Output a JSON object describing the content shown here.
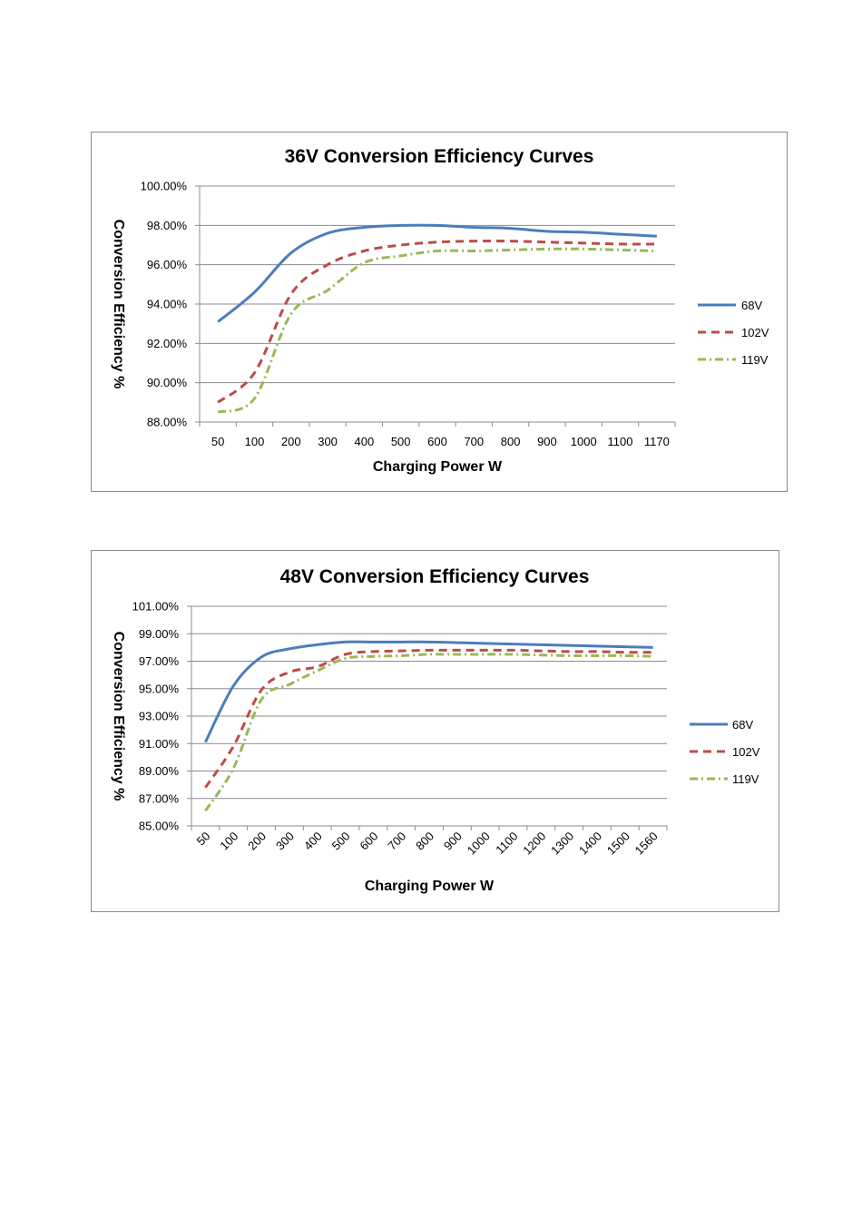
{
  "chart_data": [
    {
      "type": "line",
      "title": "36V Conversion Efficiency Curves",
      "xlabel": "Charging Power W",
      "ylabel": "Conversion Efficiency %",
      "categories": [
        "50",
        "100",
        "200",
        "300",
        "400",
        "500",
        "600",
        "700",
        "800",
        "900",
        "1000",
        "1100",
        "1170"
      ],
      "y_ticks": [
        "88.00%",
        "90.00%",
        "92.00%",
        "94.00%",
        "96.00%",
        "98.00%",
        "100.00%"
      ],
      "ylim": [
        88,
        100
      ],
      "grid": true,
      "legend": "right",
      "series": [
        {
          "name": "68V",
          "color": "#4a7ebb",
          "dash": "solid",
          "values": [
            93.1,
            94.6,
            96.6,
            97.6,
            97.9,
            98.0,
            98.0,
            97.9,
            97.85,
            97.7,
            97.65,
            97.55,
            97.45
          ]
        },
        {
          "name": "102V",
          "color": "#be4b48",
          "dash": "dash",
          "values": [
            89.0,
            90.5,
            94.5,
            96.0,
            96.7,
            97.0,
            97.15,
            97.2,
            97.2,
            97.15,
            97.1,
            97.05,
            97.05
          ]
        },
        {
          "name": "119V",
          "color": "#98b954",
          "dash": "dashdot",
          "values": [
            88.5,
            89.2,
            93.5,
            94.7,
            96.1,
            96.45,
            96.7,
            96.7,
            96.75,
            96.8,
            96.8,
            96.75,
            96.7
          ]
        }
      ]
    },
    {
      "type": "line",
      "title": "48V Conversion Efficiency Curves",
      "xlabel": "Charging Power W",
      "ylabel": "Conversion Efficiency %",
      "categories": [
        "50",
        "100",
        "200",
        "300",
        "400",
        "500",
        "600",
        "700",
        "800",
        "900",
        "1000",
        "1100",
        "1200",
        "1300",
        "1400",
        "1500",
        "1560"
      ],
      "y_ticks": [
        "85.00%",
        "87.00%",
        "89.00%",
        "91.00%",
        "93.00%",
        "95.00%",
        "97.00%",
        "99.00%",
        "101.00%"
      ],
      "ylim": [
        85,
        101
      ],
      "grid": true,
      "legend": "right",
      "series": [
        {
          "name": "68V",
          "color": "#4a7ebb",
          "dash": "solid",
          "values": [
            91.1,
            95.2,
            97.3,
            97.9,
            98.2,
            98.4,
            98.4,
            98.4,
            98.4,
            98.35,
            98.3,
            98.25,
            98.2,
            98.15,
            98.1,
            98.05,
            98.0
          ]
        },
        {
          "name": "102V",
          "color": "#be4b48",
          "dash": "dash",
          "values": [
            87.8,
            90.8,
            94.9,
            96.2,
            96.6,
            97.5,
            97.7,
            97.75,
            97.8,
            97.8,
            97.8,
            97.8,
            97.75,
            97.7,
            97.7,
            97.65,
            97.65
          ]
        },
        {
          "name": "119V",
          "color": "#98b954",
          "dash": "dashdot",
          "values": [
            86.1,
            89.2,
            94.2,
            95.3,
            96.3,
            97.2,
            97.35,
            97.4,
            97.5,
            97.5,
            97.5,
            97.5,
            97.45,
            97.4,
            97.4,
            97.4,
            97.35
          ]
        }
      ]
    }
  ]
}
